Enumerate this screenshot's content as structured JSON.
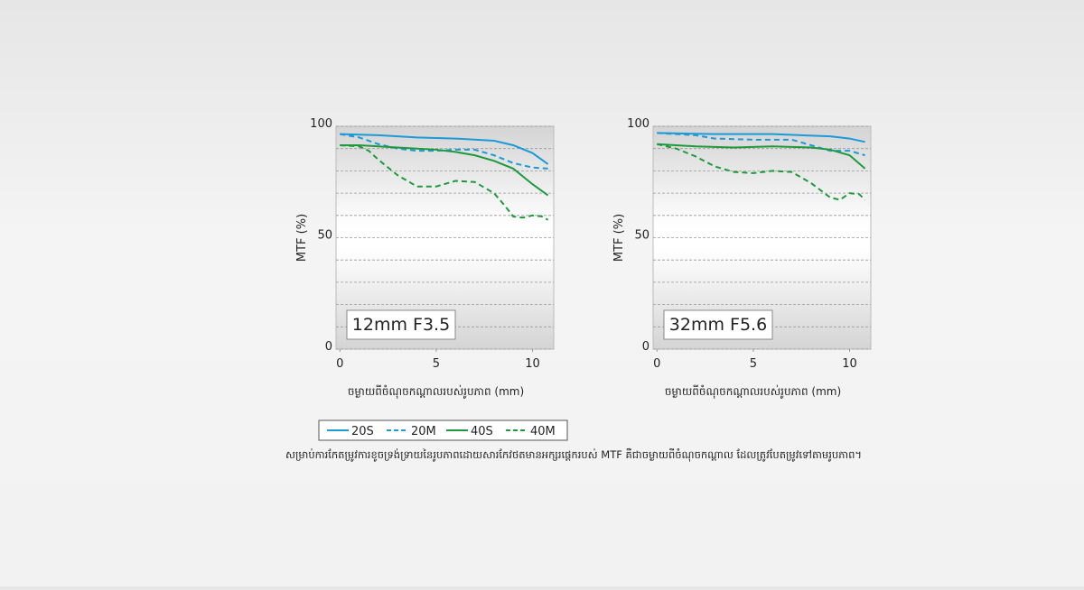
{
  "chart_data": [
    {
      "type": "line",
      "annotation": "12mm F3.5",
      "ylabel": "MTF (%)",
      "xlabel": "ចម្ងាយពីចំណុចកណ្ដាលរបស់រូបភាព (mm)",
      "xlim": [
        -0.2,
        11.1
      ],
      "xticks": [
        0,
        5,
        10
      ],
      "ylim": [
        0,
        100
      ],
      "yticks": [
        0,
        50,
        100
      ],
      "ygrid": [
        10,
        20,
        30,
        40,
        60,
        70,
        80,
        90
      ],
      "series": [
        {
          "name": "20S",
          "color": "#1a9ad6",
          "dashed": false,
          "x": [
            0,
            2,
            4,
            6,
            8,
            9,
            10,
            10.8
          ],
          "values": [
            96.5,
            96,
            95,
            94.5,
            93.5,
            91.5,
            88,
            83
          ]
        },
        {
          "name": "20M",
          "color": "#1a9ad6",
          "dashed": true,
          "x": [
            0,
            1,
            2,
            3,
            4,
            5,
            6,
            7,
            8,
            9,
            10,
            10.8
          ],
          "values": [
            96.5,
            95,
            92,
            90,
            89,
            89,
            89.5,
            89.5,
            87,
            83.5,
            81.5,
            81
          ]
        },
        {
          "name": "40S",
          "color": "#1e9a3c",
          "dashed": false,
          "x": [
            0,
            1,
            2,
            3,
            4,
            5,
            6,
            7,
            8,
            9,
            10,
            10.8
          ],
          "values": [
            91.5,
            91.5,
            91,
            90.5,
            90,
            89.5,
            88.5,
            87,
            84.5,
            81,
            74,
            69
          ]
        },
        {
          "name": "40M",
          "color": "#1e9a3c",
          "dashed": true,
          "x": [
            0,
            1,
            1.5,
            2,
            3,
            4,
            5,
            6,
            7,
            8,
            8.5,
            9,
            9.5,
            10,
            10.5,
            10.8
          ],
          "values": [
            91.5,
            91,
            89,
            85,
            78,
            73,
            73,
            75.5,
            75,
            70,
            65,
            59.5,
            59,
            60,
            59.5,
            58
          ]
        }
      ]
    },
    {
      "type": "line",
      "annotation": "32mm F5.6",
      "ylabel": "MTF (%)",
      "xlabel": "ចម្ងាយពីចំណុចកណ្ដាលរបស់រូបភាព (mm)",
      "xlim": [
        -0.2,
        11.1
      ],
      "xticks": [
        0,
        5,
        10
      ],
      "ylim": [
        0,
        100
      ],
      "yticks": [
        0,
        50,
        100
      ],
      "ygrid": [
        10,
        20,
        30,
        40,
        60,
        70,
        80,
        90
      ],
      "series": [
        {
          "color": "#1a9ad6",
          "dashed": false,
          "x": [
            0,
            3,
            6,
            9,
            10,
            10.8
          ],
          "values": [
            97,
            96.5,
            96.5,
            95.5,
            94.5,
            93
          ]
        },
        {
          "color": "#1a9ad6",
          "dashed": true,
          "x": [
            0,
            2,
            3,
            5,
            7,
            8,
            9,
            10,
            10.8
          ],
          "values": [
            97,
            96,
            94.5,
            94,
            94,
            91.5,
            89,
            89,
            87
          ]
        },
        {
          "color": "#1e9a3c",
          "dashed": false,
          "x": [
            0,
            2,
            4,
            6,
            8,
            9,
            10,
            10.8
          ],
          "values": [
            92,
            91,
            90.5,
            91,
            90.5,
            89.5,
            87,
            81
          ]
        },
        {
          "color": "#1e9a3c",
          "dashed": true,
          "x": [
            0,
            1,
            2,
            3,
            4,
            5,
            6,
            7,
            8,
            9,
            9.5,
            10,
            10.5,
            10.8
          ],
          "values": [
            92,
            90,
            86.5,
            82,
            79.5,
            79,
            80,
            79.5,
            74.5,
            68,
            67,
            70,
            69.5,
            67
          ]
        }
      ]
    }
  ],
  "caption": "សម្រាប់ការកែតម្រូវការខូចទ្រង់ទ្រាយនៃរូបភាពដោយសារកែវថតមានអក្សរផ្តេករបស់ MTF គឺជាចម្ងាយពីចំណុចកណ្ដាល ដែលត្រូវបែតម្រូវទៅតាមរូបភាព។"
}
